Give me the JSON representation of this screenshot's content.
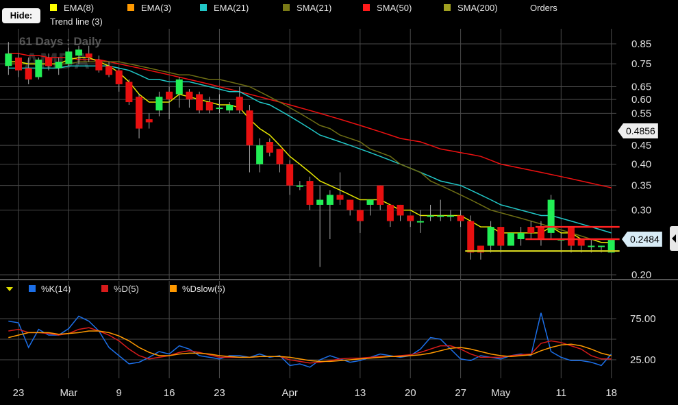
{
  "legend": {
    "hide_label": "Hide:",
    "items": [
      {
        "label": "EMA(8)",
        "color": "#ffff00"
      },
      {
        "label": "EMA(3)",
        "color": "#ff9900"
      },
      {
        "label": "EMA(21)",
        "color": "#21c7c7"
      },
      {
        "label": "SMA(21)",
        "color": "#7a7a16"
      },
      {
        "label": "SMA(50)",
        "color": "#ff1a1a"
      },
      {
        "label": "SMA(200)",
        "color": "#a0a020"
      }
    ],
    "orders_label": "Orders",
    "trend_label": "Trend line (3)"
  },
  "watermark": {
    "period": "61 Days : Daily",
    "symbol": "AMDA"
  },
  "price_badges": {
    "current": "0.4856",
    "last": "0.2484"
  },
  "osc_legend": [
    {
      "label": "%K(14)",
      "color": "#1c6fe8"
    },
    {
      "label": "%D(5)",
      "color": "#d81b1b"
    },
    {
      "label": "%Dslow(5)",
      "color": "#ff9900"
    }
  ],
  "chart_data": [
    {
      "type": "candlestick",
      "yscale": "log",
      "ylim": [
        0.19,
        0.9
      ],
      "yticks": [
        "0.85",
        "0.75",
        "0.65",
        "0.60",
        "0.55",
        "0.45",
        "0.40",
        "0.35",
        "0.30",
        "0.20"
      ],
      "xticks": [
        "23",
        "Mar",
        "9",
        "16",
        "23",
        "Apr",
        "13",
        "20",
        "27",
        "May",
        "11",
        "18"
      ],
      "candles": [
        {
          "o": 0.74,
          "h": 0.86,
          "l": 0.7,
          "c": 0.8
        },
        {
          "o": 0.78,
          "h": 0.8,
          "l": 0.69,
          "c": 0.72
        },
        {
          "o": 0.73,
          "h": 0.78,
          "l": 0.66,
          "c": 0.68
        },
        {
          "o": 0.69,
          "h": 0.78,
          "l": 0.68,
          "c": 0.77
        },
        {
          "o": 0.78,
          "h": 0.8,
          "l": 0.72,
          "c": 0.74
        },
        {
          "o": 0.73,
          "h": 0.78,
          "l": 0.7,
          "c": 0.76
        },
        {
          "o": 0.75,
          "h": 0.83,
          "l": 0.74,
          "c": 0.81
        },
        {
          "o": 0.79,
          "h": 0.84,
          "l": 0.75,
          "c": 0.82
        },
        {
          "o": 0.8,
          "h": 0.84,
          "l": 0.76,
          "c": 0.78
        },
        {
          "o": 0.77,
          "h": 0.79,
          "l": 0.71,
          "c": 0.72
        },
        {
          "o": 0.74,
          "h": 0.76,
          "l": 0.69,
          "c": 0.7
        },
        {
          "o": 0.72,
          "h": 0.73,
          "l": 0.63,
          "c": 0.66
        },
        {
          "o": 0.67,
          "h": 0.68,
          "l": 0.58,
          "c": 0.59
        },
        {
          "o": 0.61,
          "h": 0.62,
          "l": 0.47,
          "c": 0.5
        },
        {
          "o": 0.53,
          "h": 0.55,
          "l": 0.5,
          "c": 0.52
        },
        {
          "o": 0.56,
          "h": 0.63,
          "l": 0.54,
          "c": 0.61
        },
        {
          "o": 0.63,
          "h": 0.65,
          "l": 0.53,
          "c": 0.6
        },
        {
          "o": 0.62,
          "h": 0.69,
          "l": 0.57,
          "c": 0.68
        },
        {
          "o": 0.63,
          "h": 0.64,
          "l": 0.57,
          "c": 0.6
        },
        {
          "o": 0.62,
          "h": 0.63,
          "l": 0.55,
          "c": 0.56
        },
        {
          "o": 0.59,
          "h": 0.61,
          "l": 0.55,
          "c": 0.56
        },
        {
          "o": 0.57,
          "h": 0.62,
          "l": 0.55,
          "c": 0.57
        },
        {
          "o": 0.56,
          "h": 0.59,
          "l": 0.55,
          "c": 0.58
        },
        {
          "o": 0.61,
          "h": 0.65,
          "l": 0.55,
          "c": 0.56
        },
        {
          "o": 0.56,
          "h": 0.58,
          "l": 0.38,
          "c": 0.45
        },
        {
          "o": 0.4,
          "h": 0.47,
          "l": 0.38,
          "c": 0.45
        },
        {
          "o": 0.46,
          "h": 0.47,
          "l": 0.42,
          "c": 0.43
        },
        {
          "o": 0.44,
          "h": 0.44,
          "l": 0.38,
          "c": 0.4
        },
        {
          "o": 0.4,
          "h": 0.41,
          "l": 0.33,
          "c": 0.35
        },
        {
          "o": 0.35,
          "h": 0.36,
          "l": 0.34,
          "c": 0.35
        },
        {
          "o": 0.36,
          "h": 0.37,
          "l": 0.3,
          "c": 0.31
        },
        {
          "o": 0.31,
          "h": 0.35,
          "l": 0.21,
          "c": 0.32
        },
        {
          "o": 0.31,
          "h": 0.34,
          "l": 0.25,
          "c": 0.33
        },
        {
          "o": 0.33,
          "h": 0.38,
          "l": 0.31,
          "c": 0.32
        },
        {
          "o": 0.32,
          "h": 0.32,
          "l": 0.29,
          "c": 0.3
        },
        {
          "o": 0.3,
          "h": 0.3,
          "l": 0.26,
          "c": 0.28
        },
        {
          "o": 0.31,
          "h": 0.32,
          "l": 0.29,
          "c": 0.32
        },
        {
          "o": 0.35,
          "h": 0.35,
          "l": 0.3,
          "c": 0.31
        },
        {
          "o": 0.31,
          "h": 0.31,
          "l": 0.27,
          "c": 0.28
        },
        {
          "o": 0.31,
          "h": 0.31,
          "l": 0.28,
          "c": 0.29
        },
        {
          "o": 0.29,
          "h": 0.29,
          "l": 0.27,
          "c": 0.28
        },
        {
          "o": 0.28,
          "h": 0.3,
          "l": 0.26,
          "c": 0.28
        },
        {
          "o": 0.29,
          "h": 0.31,
          "l": 0.28,
          "c": 0.29
        },
        {
          "o": 0.29,
          "h": 0.32,
          "l": 0.28,
          "c": 0.29
        },
        {
          "o": 0.29,
          "h": 0.3,
          "l": 0.28,
          "c": 0.29
        },
        {
          "o": 0.29,
          "h": 0.3,
          "l": 0.27,
          "c": 0.28
        },
        {
          "o": 0.28,
          "h": 0.29,
          "l": 0.22,
          "c": 0.23
        },
        {
          "o": 0.24,
          "h": 0.24,
          "l": 0.22,
          "c": 0.23
        },
        {
          "o": 0.24,
          "h": 0.28,
          "l": 0.23,
          "c": 0.27
        },
        {
          "o": 0.27,
          "h": 0.27,
          "l": 0.23,
          "c": 0.24
        },
        {
          "o": 0.24,
          "h": 0.26,
          "l": 0.24,
          "c": 0.26
        },
        {
          "o": 0.25,
          "h": 0.27,
          "l": 0.24,
          "c": 0.26
        },
        {
          "o": 0.27,
          "h": 0.28,
          "l": 0.25,
          "c": 0.26
        },
        {
          "o": 0.27,
          "h": 0.28,
          "l": 0.24,
          "c": 0.25
        },
        {
          "o": 0.26,
          "h": 0.33,
          "l": 0.25,
          "c": 0.32
        },
        {
          "o": 0.25,
          "h": 0.26,
          "l": 0.23,
          "c": 0.25
        },
        {
          "o": 0.27,
          "h": 0.27,
          "l": 0.23,
          "c": 0.24
        },
        {
          "o": 0.25,
          "h": 0.25,
          "l": 0.23,
          "c": 0.24
        },
        {
          "o": 0.24,
          "h": 0.25,
          "l": 0.23,
          "c": 0.24
        },
        {
          "o": 0.24,
          "h": 0.24,
          "l": 0.23,
          "c": 0.24
        },
        {
          "o": 0.23,
          "h": 0.25,
          "l": 0.23,
          "c": 0.25
        }
      ],
      "series": [
        {
          "name": "SMA(50)",
          "values": [
            0.8,
            0.8,
            0.79,
            0.79,
            0.78,
            0.78,
            0.78,
            0.77,
            0.77,
            0.77,
            0.76,
            0.75,
            0.74,
            0.73,
            0.72,
            0.71,
            0.7,
            0.69,
            0.68,
            0.67,
            0.66,
            0.65,
            0.64,
            0.63,
            0.62,
            0.61,
            0.6,
            0.59,
            0.58,
            0.57,
            0.56,
            0.55,
            0.54,
            0.53,
            0.52,
            0.51,
            0.5,
            0.49,
            0.48,
            0.47,
            0.465,
            0.46,
            0.45,
            0.44,
            0.435,
            0.43,
            0.425,
            0.42,
            0.41,
            0.4,
            0.395,
            0.39,
            0.385,
            0.38,
            0.375,
            0.37,
            0.365,
            0.36,
            0.355,
            0.35,
            0.345
          ]
        },
        {
          "name": "EMA(21)",
          "values": [
            0.73,
            0.73,
            0.73,
            0.73,
            0.73,
            0.73,
            0.74,
            0.74,
            0.74,
            0.74,
            0.74,
            0.73,
            0.72,
            0.7,
            0.68,
            0.68,
            0.67,
            0.67,
            0.67,
            0.66,
            0.65,
            0.64,
            0.63,
            0.63,
            0.61,
            0.59,
            0.58,
            0.56,
            0.54,
            0.52,
            0.5,
            0.48,
            0.47,
            0.46,
            0.45,
            0.44,
            0.43,
            0.42,
            0.41,
            0.4,
            0.39,
            0.38,
            0.37,
            0.36,
            0.355,
            0.35,
            0.34,
            0.33,
            0.32,
            0.31,
            0.305,
            0.3,
            0.295,
            0.29,
            0.29,
            0.285,
            0.28,
            0.275,
            0.27,
            0.265,
            0.26
          ]
        },
        {
          "name": "SMA(21)",
          "values": [
            0.75,
            0.75,
            0.75,
            0.75,
            0.75,
            0.75,
            0.75,
            0.76,
            0.76,
            0.76,
            0.76,
            0.76,
            0.75,
            0.74,
            0.73,
            0.72,
            0.71,
            0.7,
            0.7,
            0.69,
            0.68,
            0.68,
            0.67,
            0.66,
            0.65,
            0.63,
            0.61,
            0.59,
            0.57,
            0.55,
            0.53,
            0.51,
            0.5,
            0.48,
            0.47,
            0.46,
            0.44,
            0.43,
            0.42,
            0.4,
            0.39,
            0.38,
            0.36,
            0.35,
            0.34,
            0.33,
            0.32,
            0.31,
            0.3,
            0.295,
            0.29,
            0.285,
            0.28,
            0.275,
            0.27,
            0.265,
            0.26,
            0.255,
            0.25,
            0.25,
            0.25
          ]
        },
        {
          "name": "EMA(8)",
          "values": [
            0.76,
            0.76,
            0.75,
            0.75,
            0.75,
            0.75,
            0.77,
            0.78,
            0.78,
            0.76,
            0.74,
            0.71,
            0.67,
            0.62,
            0.59,
            0.59,
            0.59,
            0.62,
            0.61,
            0.6,
            0.59,
            0.58,
            0.58,
            0.57,
            0.53,
            0.5,
            0.48,
            0.45,
            0.42,
            0.4,
            0.38,
            0.36,
            0.35,
            0.34,
            0.33,
            0.32,
            0.32,
            0.32,
            0.31,
            0.3,
            0.3,
            0.29,
            0.29,
            0.29,
            0.29,
            0.29,
            0.28,
            0.27,
            0.27,
            0.26,
            0.26,
            0.26,
            0.26,
            0.26,
            0.27,
            0.26,
            0.26,
            0.25,
            0.25,
            0.245,
            0.245
          ]
        }
      ],
      "trend_lines": [
        {
          "color": "#ff2222",
          "from": {
            "x": 53,
            "y": 0.27
          },
          "to": {
            "x": 60,
            "y": 0.27
          }
        },
        {
          "color": "#ff2222",
          "from": {
            "x": 52,
            "y": 0.25
          },
          "to": {
            "x": 60,
            "y": 0.25
          }
        },
        {
          "color": "#c8c81e",
          "from": {
            "x": 46,
            "y": 0.232
          },
          "to": {
            "x": 60,
            "y": 0.232
          }
        }
      ]
    },
    {
      "type": "line",
      "title": "",
      "ylim": [
        0,
        100
      ],
      "yticks": [
        "75.00",
        "25.00"
      ],
      "series": [
        {
          "name": "%K(14)",
          "values": [
            72,
            70,
            40,
            62,
            55,
            55,
            63,
            78,
            72,
            60,
            40,
            30,
            20,
            22,
            28,
            35,
            32,
            42,
            38,
            30,
            28,
            26,
            30,
            30,
            28,
            32,
            28,
            30,
            18,
            20,
            16,
            25,
            30,
            26,
            22,
            24,
            28,
            32,
            30,
            28,
            30,
            38,
            52,
            50,
            38,
            26,
            24,
            30,
            28,
            26,
            30,
            32,
            30,
            82,
            35,
            28,
            24,
            24,
            22,
            18,
            32
          ]
        },
        {
          "name": "%D(5)",
          "values": [
            60,
            62,
            58,
            58,
            57,
            55,
            57,
            62,
            64,
            60,
            55,
            48,
            38,
            30,
            26,
            28,
            30,
            34,
            36,
            34,
            31,
            28,
            28,
            28,
            28,
            29,
            29,
            29,
            25,
            23,
            21,
            22,
            24,
            26,
            27,
            27,
            28,
            29,
            29,
            30,
            31,
            34,
            38,
            42,
            42,
            38,
            32,
            28,
            28,
            28,
            30,
            31,
            32,
            45,
            48,
            46,
            42,
            38,
            30,
            26,
            26
          ]
        },
        {
          "name": "%Dslow(5)",
          "values": [
            52,
            55,
            58,
            58,
            58,
            56,
            57,
            58,
            60,
            60,
            58,
            54,
            48,
            40,
            34,
            30,
            30,
            32,
            33,
            33,
            32,
            30,
            29,
            28,
            28,
            29,
            29,
            29,
            28,
            26,
            24,
            23,
            23,
            24,
            25,
            26,
            27,
            28,
            29,
            29,
            30,
            31,
            33,
            36,
            39,
            40,
            38,
            35,
            32,
            30,
            29,
            30,
            31,
            36,
            40,
            43,
            44,
            42,
            38,
            33,
            30
          ]
        }
      ]
    }
  ]
}
